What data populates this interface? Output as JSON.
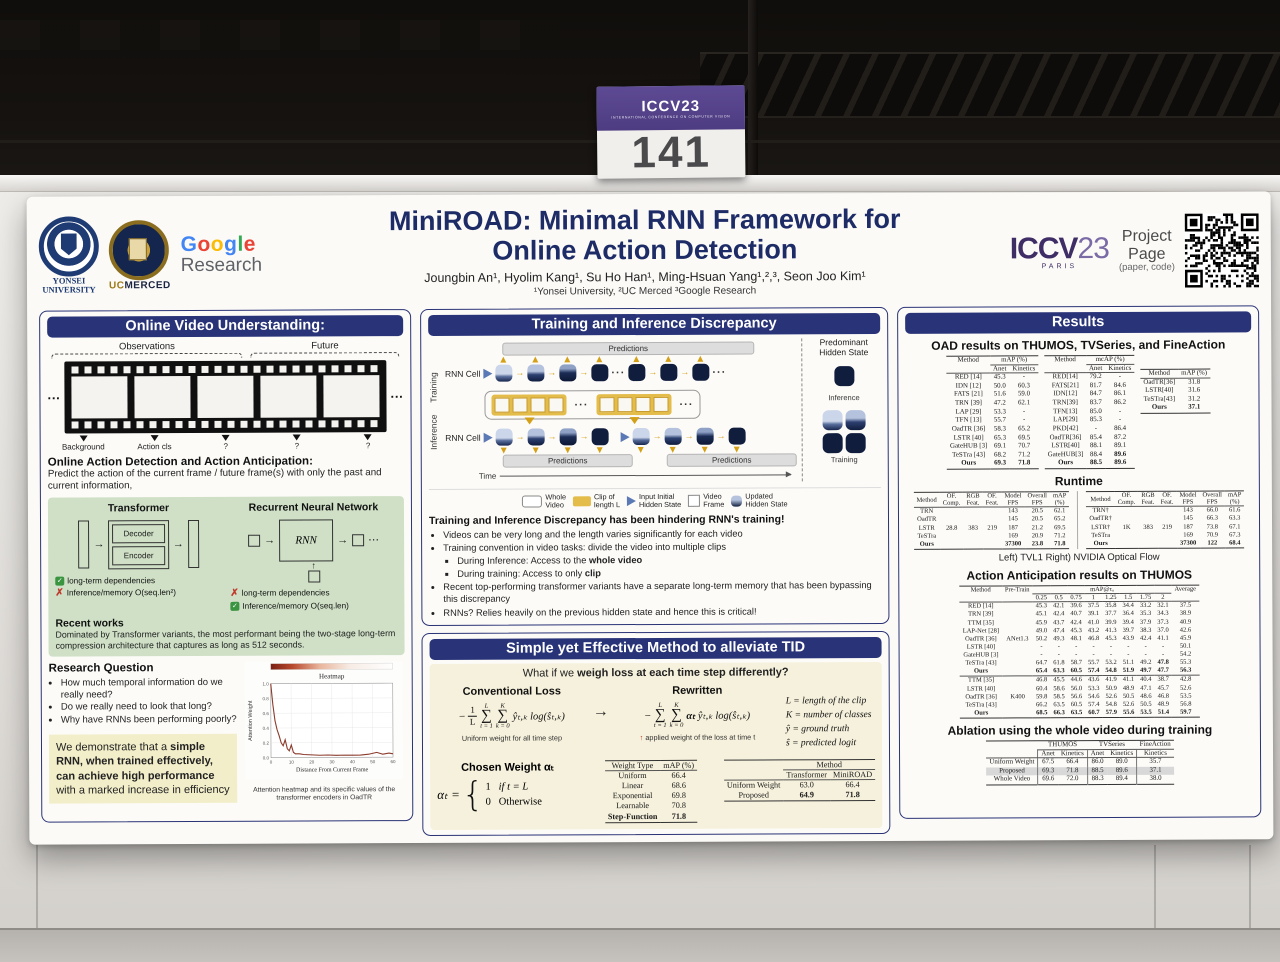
{
  "scene": {
    "plate_brand": "ICCV23",
    "plate_sub": "INTERNATIONAL CONFERENCE ON COMPUTER VISION",
    "plate_number": "141"
  },
  "header": {
    "title1": "MiniROAD: Minimal RNN Framework for",
    "title2": "Online Action Detection",
    "authors": "Joungbin An¹, Hyolim Kang¹, Su Ho Han¹, Ming-Hsuan Yang¹,²,³, Seon Joo Kim¹",
    "affiliations": "¹Yonsei University, ²UC Merced ³Google Research",
    "yonsei_cap1": "YONSEI",
    "yonsei_cap2": "UNIVERSITY",
    "ucmerced_uc": "UC",
    "ucmerced_merced": "MERCED",
    "google_letters": [
      "G",
      "o",
      "o",
      "g",
      "l",
      "e"
    ],
    "google_research": "Research",
    "iccv_name": "ICCV",
    "iccv_year": "23",
    "iccv_city": "PARIS",
    "project_line1": "Project",
    "project_line2": "Page",
    "project_line3": "(paper, code)"
  },
  "left": {
    "section_title": "Online Video Understanding:",
    "observations": "Observations",
    "future": "Future",
    "dots": "···",
    "frame_labels": [
      "Background",
      "Action cls",
      "?",
      "?",
      "?"
    ],
    "oad_heading": "Online Action Detection and Action Anticipation:",
    "oad_text": "Predict the action of the current frame / future frame(s) with only the past and current information,",
    "transformer_title": "Transformer",
    "decoder": "Decoder",
    "encoder": "Encoder",
    "rnn_title": "Recurrent Neural Network",
    "rnn": "RNN",
    "tf_point1": "long-term dependencies",
    "tf_point2": "Inference/memory O(seq.len²)",
    "rnn_point1": "long-term dependencies",
    "rnn_point2": "Inference/memory O(seq.len)",
    "recent_title": "Recent works",
    "recent_text": "Dominated by Transformer variants, the most performant being the two-stage long-term compression architecture that captures as long as 512 seconds.",
    "rq_title": "Research Question",
    "rq": [
      "How much temporal information do we really need?",
      "Do we really need to look that long?",
      "Why have RNNs been performing poorly?"
    ],
    "claim_pre": "We demonstrate that a ",
    "claim_bold": "simple RNN, when trained effectively, can achieve high performance",
    "claim_post": " with a marked increase in efficiency",
    "heatmap": {
      "title": "Heatmap",
      "ylabel": "Attention Weight",
      "xlabel": "Distance From Current Frame",
      "caption1": "Attention heatmap and its specific values of the",
      "caption2": "transformer encoders in OadTR",
      "yticks": [
        "1.0",
        "0.8",
        "0.6",
        "0.4",
        "0.2",
        "0.0"
      ],
      "xticks": [
        "0",
        "10",
        "20",
        "30",
        "40",
        "50",
        "60"
      ],
      "curve": [
        [
          0,
          1.0
        ],
        [
          1,
          0.72
        ],
        [
          2,
          0.5
        ],
        [
          3,
          0.38
        ],
        [
          4,
          0.3
        ],
        [
          5,
          0.2
        ],
        [
          6,
          0.16
        ],
        [
          7,
          0.24
        ],
        [
          8,
          0.12
        ],
        [
          9,
          0.09
        ],
        [
          10,
          0.17
        ],
        [
          11,
          0.07
        ],
        [
          12,
          0.05
        ],
        [
          14,
          0.05
        ],
        [
          16,
          0.04
        ],
        [
          20,
          0.035
        ],
        [
          24,
          0.03
        ],
        [
          28,
          0.032
        ],
        [
          32,
          0.028
        ],
        [
          36,
          0.03
        ],
        [
          40,
          0.028
        ],
        [
          44,
          0.03
        ],
        [
          48,
          0.04
        ],
        [
          52,
          0.065
        ],
        [
          55,
          0.04
        ],
        [
          58,
          0.055
        ],
        [
          60,
          0.045
        ]
      ]
    }
  },
  "middle": {
    "tid_title": "Training and Inference Discrepancy",
    "inference": "Inference",
    "training": "Training",
    "rnn_cell": "RNN Cell",
    "predictions": "Predictions",
    "time": "Time",
    "dots": "···",
    "side_title": "Predominant\nHidden State",
    "side_inf": "Inference",
    "side_tr": "Training",
    "legend": [
      "Whole\nVideo",
      "Clip of\nlength L",
      "Input Initial\nHidden State",
      "Video\nFrame",
      "Updated\nHidden State"
    ],
    "hindering": "Training and Inference Discrepancy has been hindering RNN's training!",
    "b1": "Videos can be very long and the length varies significantly for each video",
    "b2": "Training convention in video tasks: divide the video into multiple clips",
    "b3_pre": "During Inference: Access to the ",
    "b3_bold": "whole video",
    "b4_pre": "During training: Access to only ",
    "b4_bold": "clip",
    "b5": "Recent top-performing transformer variants have a separate long-term memory that has been bypassing this discrepancy",
    "b6": "RNNs? Relies heavily on the previous hidden state and hence this is critical!",
    "method_title": "Simple yet Effective Method to alleviate TID",
    "q_pre": "What if we ",
    "q_bold": "weigh loss at each time step differently?",
    "conv_label": "Conventional Loss",
    "rew_label": "Rewritten",
    "minus": "−",
    "frac_top": "1",
    "frac_bot": "L",
    "sumL_top": "L",
    "sumL_bot": "t = 1",
    "sumK_top": "K",
    "sumK_bot": "k = 0",
    "conv_body": "ŷₜ,ₖ log(ŝₜ,ₖ)",
    "rew_alpha": "αₜ",
    "rew_body": "ŷₜ,ₖ log(ŝₜ,ₖ)",
    "arrow": "→",
    "conv_caption": "Uniform weight for all time step",
    "rew_caption": "applied weight of the loss at time t",
    "red_arrow": "↑",
    "defs": [
      "L = length of the clip",
      "K = number of classes",
      "ŷ = ground truth",
      "ŝ = predicted logit"
    ],
    "chosen_label": "Chosen Weight αₜ",
    "alpha_lhs": "αₜ =",
    "case1_val": "1",
    "case1_cond": "if t = L",
    "case2_val": "0",
    "case2_cond": "Otherwise",
    "weight_table": {
      "headers": [
        "Weight Type",
        "mAP (%)"
      ],
      "rows": [
        {
          "c": [
            "Uniform",
            "66.4"
          ]
        },
        {
          "c": [
            "Linear",
            "68.6"
          ]
        },
        {
          "c": [
            "Exponential",
            "69.8"
          ]
        },
        {
          "c": [
            "Learnable",
            "70.8"
          ]
        },
        {
          "c": [
            "Step-Function",
            "71.8"
          ],
          "b": true
        }
      ]
    },
    "method_table": {
      "colgroups": [
        {
          "l": "",
          "s": 1
        },
        {
          "l": "Method",
          "s": 2,
          "u": true
        }
      ],
      "headers": [
        "",
        "Transformer",
        "MiniROAD"
      ],
      "rows": [
        {
          "c": [
            "Uniform Weight",
            "63.0",
            "66.4"
          ]
        },
        {
          "c": [
            "Proposed",
            "64.9",
            "71.8"
          ],
          "bc": [
            1,
            2
          ]
        }
      ]
    }
  },
  "right": {
    "results_title": "Results",
    "oad_heading": "OAD results on THUMOS, TVSeries, and FineAction",
    "thumos": {
      "colgroups": [
        {
          "l": "Method",
          "s": 1
        },
        {
          "l": "mAP (%)",
          "s": 2,
          "u": true
        }
      ],
      "headers": [
        "",
        "Anet",
        "Kinetics"
      ],
      "rows": [
        {
          "c": [
            "RED [14]",
            "45.3",
            "-"
          ]
        },
        {
          "c": [
            "IDN [12]",
            "50.0",
            "60.3"
          ]
        },
        {
          "c": [
            "FATS [21]",
            "51.6",
            "59.0"
          ]
        },
        {
          "c": [
            "TRN [39]",
            "47.2",
            "62.1"
          ]
        },
        {
          "c": [
            "LAP [29]",
            "53.3",
            "-"
          ]
        },
        {
          "c": [
            "TFN [13]",
            "55.7",
            "-"
          ]
        },
        {
          "c": [
            "OadTR [36]",
            "58.3",
            "65.2"
          ]
        },
        {
          "c": [
            "LSTR [40]",
            "65.3",
            "69.5"
          ]
        },
        {
          "c": [
            "GateHUB [3]",
            "69.1",
            "70.7"
          ]
        },
        {
          "c": [
            "TeSTra [43]",
            "68.2",
            "71.2"
          ]
        },
        {
          "c": [
            "Ours",
            "69.3",
            "71.8"
          ],
          "b": true
        }
      ]
    },
    "tvseries": {
      "colgroups": [
        {
          "l": "Method",
          "s": 1
        },
        {
          "l": "mcAP (%)",
          "s": 2,
          "u": true
        }
      ],
      "headers": [
        "",
        "Anet",
        "Kinetics"
      ],
      "rows": [
        {
          "c": [
            "RED[14]",
            "79.2",
            "-"
          ]
        },
        {
          "c": [
            "FATS[21]",
            "81.7",
            "84.6"
          ]
        },
        {
          "c": [
            "IDN[12]",
            "84.7",
            "86.1"
          ]
        },
        {
          "c": [
            "TRN[39]",
            "83.7",
            "86.2"
          ]
        },
        {
          "c": [
            "TFN[13]",
            "85.0",
            "-"
          ]
        },
        {
          "c": [
            "LAP[29]",
            "85.3",
            "-"
          ]
        },
        {
          "c": [
            "PKD[42]",
            "-",
            "86.4"
          ]
        },
        {
          "c": [
            "OadTR[36]",
            "85.4",
            "87.2"
          ]
        },
        {
          "c": [
            "LSTR[40]",
            "88.1",
            "89.1"
          ]
        },
        {
          "c": [
            "GateHUB[3]",
            "88.4",
            "89.6"
          ],
          "bc": [
            2
          ]
        },
        {
          "c": [
            "Ours",
            "88.5",
            "89.6"
          ],
          "b": true
        }
      ]
    },
    "fineaction": {
      "headers": [
        "Method",
        "mAP (%)"
      ],
      "rows": [
        {
          "c": [
            "OadTR[36]",
            "31.8"
          ]
        },
        {
          "c": [
            "LSTR[40]",
            "31.6"
          ]
        },
        {
          "c": [
            "TeSTra[43]",
            "31.2"
          ]
        },
        {
          "c": [
            "Ours",
            "37.1"
          ],
          "b": true
        }
      ]
    },
    "runtime_heading": "Runtime",
    "runtime_left": {
      "headers": [
        "Method",
        "OF.\nComp.",
        "RGB\nFeat.",
        "OF.\nFeat.",
        "Model\nFPS",
        "Overall\nFPS",
        "mAP\n(%)"
      ],
      "rows": [
        {
          "c": [
            "TRN",
            "",
            "",
            "",
            "143",
            "20.5",
            "62.1"
          ]
        },
        {
          "c": [
            "OadTR",
            "",
            "",
            "",
            "145",
            "20.5",
            "65.2"
          ]
        },
        {
          "c": [
            "LSTR",
            "28.8",
            "383",
            "219",
            "187",
            "21.2",
            "69.5"
          ]
        },
        {
          "c": [
            "TeSTra",
            "",
            "",
            "",
            "169",
            "20.9",
            "71.2"
          ]
        },
        {
          "c": [
            "Ours",
            "",
            "",
            "",
            "37300",
            "23.8",
            "71.8"
          ],
          "b": true
        }
      ]
    },
    "runtime_right": {
      "headers": [
        "Method",
        "OF.\nComp.",
        "RGB\nFeat.",
        "OF.\nFeat.",
        "Model\nFPS",
        "Overall\nFPS",
        "mAP\n(%)"
      ],
      "rows": [
        {
          "c": [
            "TRN†",
            "",
            "",
            "",
            "143",
            "66.0",
            "61.6"
          ]
        },
        {
          "c": [
            "OadTR†",
            "",
            "",
            "",
            "145",
            "66.3",
            "63.3"
          ]
        },
        {
          "c": [
            "LSTR†",
            "1K",
            "383",
            "219",
            "187",
            "73.8",
            "67.1"
          ]
        },
        {
          "c": [
            "TeSTra",
            "",
            "",
            "",
            "169",
            "70.9",
            "67.3"
          ]
        },
        {
          "c": [
            "Ours",
            "",
            "",
            "",
            "37300",
            "122",
            "68.4"
          ],
          "b": true
        }
      ]
    },
    "runtime_caption": "Left) TVL1   Right) NVIDIA Optical Flow",
    "anticipation_heading": "Action Anticipation results on THUMOS",
    "anticipation": {
      "colgroups": [
        {
          "l": "Method",
          "s": 1
        },
        {
          "l": "Pre-Train",
          "s": 1
        },
        {
          "l": "mAP@τₒ",
          "s": 8,
          "u": true
        },
        {
          "l": "Average",
          "s": 1
        }
      ],
      "headers": [
        "",
        "",
        "0.25",
        "0.5",
        "0.75",
        "1",
        "1.25",
        "1.5",
        "1.75",
        "2",
        ""
      ],
      "rules": [
        8
      ],
      "rows": [
        {
          "c": [
            "RED [14]",
            "",
            "45.3",
            "42.1",
            "39.6",
            "37.5",
            "35.8",
            "34.4",
            "33.2",
            "32.1",
            "37.5"
          ]
        },
        {
          "c": [
            "TRN [39]",
            "",
            "45.1",
            "42.4",
            "40.7",
            "39.1",
            "37.7",
            "36.4",
            "35.3",
            "34.3",
            "38.9"
          ]
        },
        {
          "c": [
            "TTM [35]",
            "",
            "45.9",
            "43.7",
            "42.4",
            "41.0",
            "39.9",
            "39.4",
            "37.9",
            "37.3",
            "40.9"
          ]
        },
        {
          "c": [
            "LAP-Net [28]",
            "",
            "49.0",
            "47.4",
            "45.3",
            "43.2",
            "41.3",
            "39.7",
            "38.3",
            "37.0",
            "42.6"
          ]
        },
        {
          "c": [
            "OadTR [36]",
            "ANet1.3",
            "50.2",
            "49.3",
            "48.1",
            "46.8",
            "45.3",
            "43.9",
            "42.4",
            "41.1",
            "45.9"
          ]
        },
        {
          "c": [
            "LSTR [40]",
            "",
            "-",
            "-",
            "-",
            "-",
            "-",
            "-",
            "-",
            "-",
            "50.1"
          ]
        },
        {
          "c": [
            "GateHUB [3]",
            "",
            "-",
            "-",
            "-",
            "-",
            "-",
            "-",
            "-",
            "-",
            "54.2"
          ]
        },
        {
          "c": [
            "TeSTra [43]",
            "",
            "64.7",
            "61.8",
            "58.7",
            "55.7",
            "53.2",
            "51.1",
            "49.2",
            "47.8",
            "55.3"
          ],
          "bc": [
            9
          ]
        },
        {
          "c": [
            "Ours",
            "",
            "65.4",
            "63.3",
            "60.5",
            "57.4",
            "54.8",
            "51.9",
            "49.7",
            "47.7",
            "56.3"
          ],
          "b": true
        },
        {
          "c": [
            "TTM [35]",
            "",
            "46.8",
            "45.5",
            "44.6",
            "43.6",
            "41.9",
            "41.1",
            "40.4",
            "38.7",
            "42.8"
          ]
        },
        {
          "c": [
            "LSTR [40]",
            "",
            "60.4",
            "58.6",
            "56.0",
            "53.3",
            "50.9",
            "48.9",
            "47.1",
            "45.7",
            "52.6"
          ]
        },
        {
          "c": [
            "OadTR [36]",
            "K400",
            "59.8",
            "58.5",
            "56.6",
            "54.6",
            "52.6",
            "50.5",
            "48.6",
            "46.8",
            "53.5"
          ]
        },
        {
          "c": [
            "TeSTra [43]",
            "",
            "66.2",
            "63.5",
            "60.5",
            "57.4",
            "54.8",
            "52.6",
            "50.5",
            "48.9",
            "56.8"
          ]
        },
        {
          "c": [
            "Ours",
            "",
            "68.5",
            "66.3",
            "63.5",
            "60.7",
            "57.9",
            "55.6",
            "53.5",
            "51.4",
            "59.7"
          ],
          "b": true
        }
      ]
    },
    "ablation_heading": "Ablation using the whole video during training",
    "ablation": {
      "colgroups": [
        {
          "l": "",
          "s": 1
        },
        {
          "l": "THUMOS",
          "s": 2,
          "u": true
        },
        {
          "l": "TVSeries",
          "s": 2,
          "u": true
        },
        {
          "l": "FineAction",
          "s": 1,
          "u": true
        }
      ],
      "headers": [
        "",
        "Anet",
        "Kinetics",
        "Anet",
        "Kinetics",
        "Kinetics"
      ],
      "highlight": [
        1
      ],
      "vlines": [
        0,
        2,
        4
      ],
      "rows": [
        {
          "c": [
            "Uniform Weight",
            "67.5",
            "66.4",
            "86.0",
            "89.0",
            "35.7"
          ]
        },
        {
          "c": [
            "Proposed",
            "69.3",
            "71.8",
            "88.5",
            "89.6",
            "37.1"
          ]
        },
        {
          "c": [
            "Whole Video",
            "69.6",
            "72.0",
            "88.3",
            "89.4",
            "38.0"
          ]
        }
      ]
    }
  }
}
